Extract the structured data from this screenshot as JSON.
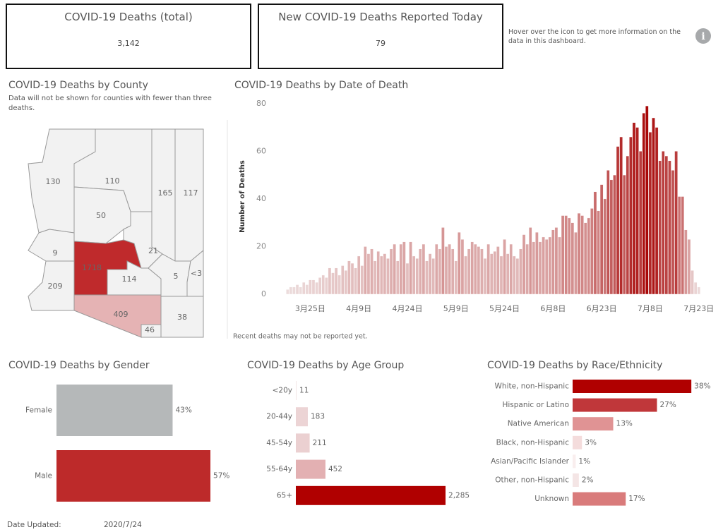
{
  "kpis": [
    {
      "title": "COVID-19 Deaths (total)",
      "value": "3,142"
    },
    {
      "title": "New COVID-19 Deaths Reported Today",
      "value": "79"
    }
  ],
  "info_text": "Hover over the icon to get more information on the data in this dashboard.",
  "map": {
    "title": "COVID-19 Deaths by County",
    "subtitle": "Data will not be shown for counties with fewer than three deaths.",
    "labels": [
      "130",
      "110",
      "50",
      "165",
      "117",
      "9",
      "1718",
      "21",
      "209",
      "114",
      "5",
      "<3",
      "409",
      "46",
      "38"
    ]
  },
  "chart_data": [
    {
      "type": "bar",
      "title": "COVID-19 Deaths by Date of Death",
      "y_label": "Number of Deaths",
      "note": "Recent deaths may not be reported yet.",
      "categories": [
        null,
        null,
        null,
        null,
        null,
        null,
        null,
        "3月25日",
        null,
        null,
        null,
        null,
        null,
        null,
        null,
        null,
        null,
        null,
        null,
        null,
        null,
        null,
        "4月9日",
        null,
        null,
        null,
        null,
        null,
        null,
        null,
        null,
        null,
        null,
        null,
        null,
        null,
        null,
        "4月24日",
        null,
        null,
        null,
        null,
        null,
        null,
        null,
        null,
        null,
        null,
        null,
        null,
        null,
        null,
        "5月9日",
        null,
        null,
        null,
        null,
        null,
        null,
        null,
        null,
        null,
        null,
        null,
        null,
        null,
        null,
        "5月24日",
        null,
        null,
        null,
        null,
        null,
        null,
        null,
        null,
        null,
        null,
        null,
        null,
        null,
        null,
        "6月8日",
        null,
        null,
        null,
        null,
        null,
        null,
        null,
        null,
        null,
        null,
        null,
        null,
        null,
        null,
        "6月23日",
        null,
        null,
        null,
        null,
        null,
        null,
        null,
        null,
        null,
        null,
        null,
        null,
        null,
        null,
        "7月8日",
        null,
        null,
        null,
        null,
        null,
        null,
        null,
        null,
        null,
        null,
        null,
        null,
        null,
        null,
        "7月23日"
      ],
      "values": [
        2,
        3,
        3,
        4,
        3,
        5,
        4,
        6,
        6,
        5,
        7,
        8,
        7,
        11,
        9,
        11,
        8,
        12,
        10,
        14,
        13,
        11,
        16,
        12,
        20,
        17,
        19,
        14,
        18,
        16,
        17,
        15,
        19,
        21,
        14,
        21,
        22,
        13,
        22,
        16,
        15,
        19,
        21,
        14,
        17,
        15,
        21,
        19,
        28,
        20,
        21,
        19,
        14,
        26,
        23,
        16,
        19,
        22,
        21,
        20,
        19,
        15,
        21,
        17,
        18,
        20,
        16,
        23,
        17,
        21,
        16,
        15,
        19,
        25,
        21,
        28,
        22,
        26,
        22,
        24,
        23,
        24,
        27,
        28,
        24,
        33,
        33,
        32,
        30,
        26,
        34,
        33,
        30,
        32,
        36,
        43,
        35,
        46,
        40,
        52,
        48,
        50,
        62,
        66,
        50,
        58,
        66,
        72,
        70,
        60,
        76,
        79,
        68,
        74,
        70,
        56,
        60,
        58,
        56,
        52,
        60,
        41,
        41,
        27,
        23,
        10,
        5,
        3
      ],
      "ylim": [
        0,
        82
      ],
      "yticks": [
        0,
        20,
        40,
        60,
        80
      ],
      "color_range": [
        "#eee2e2",
        "#a50000"
      ]
    },
    {
      "type": "hbar",
      "title": "COVID-19 Deaths by Gender",
      "categories": [
        "Female",
        "Male"
      ],
      "values": [
        43,
        57
      ],
      "value_labels": [
        "43%",
        "57%"
      ],
      "colors": [
        "#b5b8b9",
        "#bd2a2a"
      ],
      "xlim": [
        0,
        60
      ]
    },
    {
      "type": "hbar",
      "title": "COVID-19 Deaths by Age Group",
      "categories": [
        "<20y",
        "20-44y",
        "45-54y",
        "55-64y",
        "65+"
      ],
      "values": [
        11,
        183,
        211,
        452,
        2285
      ],
      "value_labels": [
        "11",
        "183",
        "211",
        "452",
        "2,285"
      ],
      "colors": [
        "#f2e6e6",
        "#ecd4d5",
        "#ebd0d1",
        "#e3b0b2",
        "#b00000"
      ],
      "xlim": [
        0,
        2400
      ]
    },
    {
      "type": "hbar",
      "title": "COVID-19 Deaths by Race/Ethnicity",
      "categories": [
        "White, non-Hispanic",
        "Hispanic or Latino",
        "Native American",
        "Black, non-Hispanic",
        "Asian/Pacific Islander",
        "Other, non-Hispanic",
        "Unknown"
      ],
      "values": [
        38,
        27,
        13,
        3,
        1,
        2,
        17
      ],
      "value_labels": [
        "38%",
        "27%",
        "13%",
        "3%",
        "1%",
        "2%",
        "17%"
      ],
      "colors": [
        "#b00000",
        "#c0373a",
        "#e09394",
        "#f4dcdc",
        "#f9eeee",
        "#f4e5e5",
        "#d97b7b"
      ],
      "xlim": [
        0,
        40
      ]
    }
  ],
  "footer": {
    "label": "Date Updated:",
    "value": "2020/7/24"
  }
}
